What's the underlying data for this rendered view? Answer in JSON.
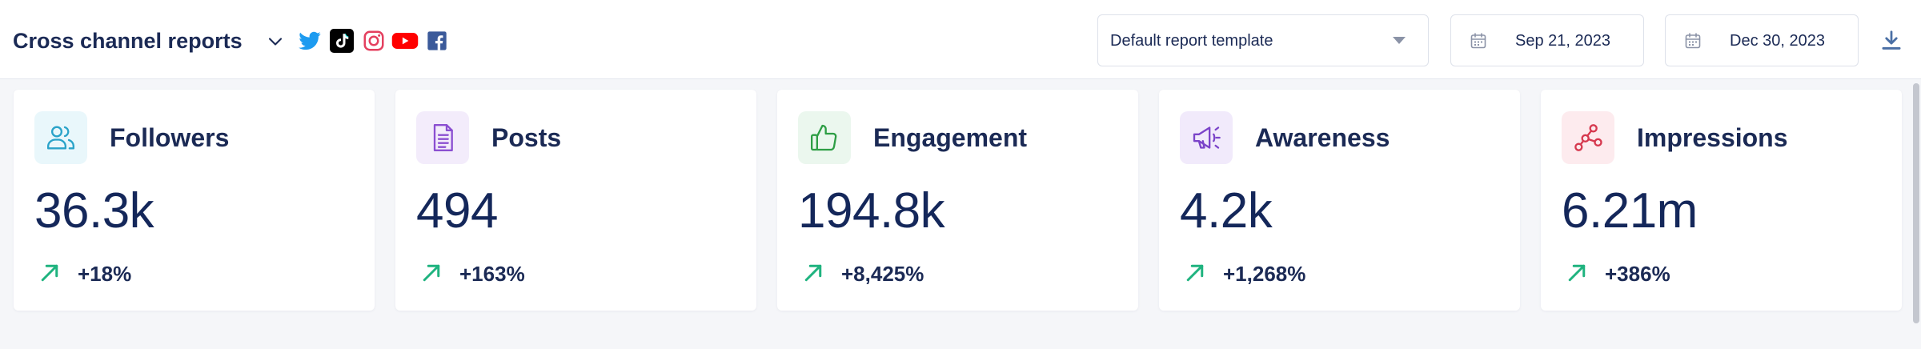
{
  "header": {
    "title": "Cross channel reports",
    "channels": [
      "twitter-icon",
      "tiktok-icon",
      "instagram-icon",
      "youtube-icon",
      "facebook-icon"
    ],
    "template_select": {
      "value": "Default report template"
    },
    "date_start": "Sep 21, 2023",
    "date_end": "Dec 30, 2023"
  },
  "cards": [
    {
      "label": "Followers",
      "value": "36.3k",
      "change": "+18%",
      "icon": "users-icon",
      "accent": "#2aa3c9",
      "tint": "#e9f7fb"
    },
    {
      "label": "Posts",
      "value": "494",
      "change": "+163%",
      "icon": "document-icon",
      "accent": "#8b4fd1",
      "tint": "#f3ecfb"
    },
    {
      "label": "Engagement",
      "value": "194.8k",
      "change": "+8,425%",
      "icon": "thumbs-up-icon",
      "accent": "#2e9e45",
      "tint": "#ebf7ee"
    },
    {
      "label": "Awareness",
      "value": "4.2k",
      "change": "+1,268%",
      "icon": "megaphone-icon",
      "accent": "#7b44c9",
      "tint": "#f1eafb"
    },
    {
      "label": "Impressions",
      "value": "6.21m",
      "change": "+386%",
      "icon": "share-nodes-icon",
      "accent": "#d6394f",
      "tint": "#fdebee"
    }
  ],
  "colors": {
    "trend_up": "#1fb37f",
    "text_primary": "#1b2a55"
  }
}
